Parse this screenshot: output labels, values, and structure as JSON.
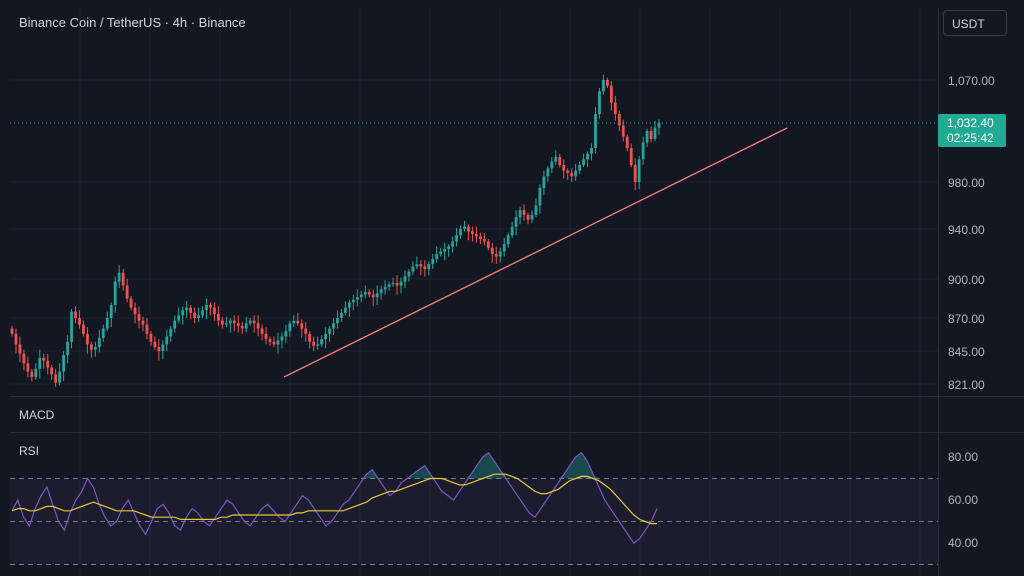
{
  "header": {
    "symbol_title": "Binance Coin / TetherUS · 4h · Binance"
  },
  "currency_button": {
    "label": "USDT"
  },
  "price_axis": {
    "ticks": [
      "1,070.00",
      "980.00",
      "940.00",
      "900.00",
      "870.00",
      "845.00",
      "821.00"
    ]
  },
  "last_price": {
    "value": "1,032.40",
    "countdown": "02:25:42",
    "color": "#22ab94"
  },
  "colors": {
    "background": "#131722",
    "up_candle": "#26a69a",
    "down_candle": "#ef5350",
    "trendline": "#f77c80",
    "rsi_line": "#7e57c2",
    "rsi_ma_line": "#e8c93a"
  },
  "panes": {
    "macd_label": "MACD",
    "rsi_label": "RSI"
  },
  "rsi_axis": {
    "ticks": [
      "80.00",
      "60.00",
      "40.00"
    ]
  },
  "chart_data": [
    {
      "type": "candlestick",
      "title": "Binance Coin / TetherUS · 4h · Binance",
      "ylim": [
        810,
        1090
      ],
      "last_price": 1032.4,
      "closes": [
        858,
        850,
        843,
        836,
        830,
        826,
        832,
        840,
        838,
        833,
        828,
        822,
        830,
        842,
        852,
        875,
        870,
        865,
        858,
        850,
        846,
        848,
        855,
        862,
        870,
        880,
        898,
        905,
        895,
        885,
        878,
        873,
        868,
        865,
        858,
        852,
        848,
        845,
        850,
        856,
        862,
        868,
        872,
        876,
        878,
        874,
        870,
        872,
        876,
        880,
        878,
        873,
        868,
        865,
        866,
        868,
        866,
        864,
        862,
        866,
        868,
        866,
        862,
        858,
        854,
        852,
        850,
        853,
        856,
        860,
        866,
        868,
        866,
        862,
        858,
        852,
        849,
        850,
        854,
        858,
        862,
        866,
        870,
        874,
        878,
        882,
        884,
        886,
        888,
        890,
        888,
        886,
        889,
        892,
        894,
        896,
        897,
        895,
        898,
        902,
        906,
        910,
        912,
        910,
        908,
        912,
        916,
        920,
        922,
        924,
        926,
        930,
        935,
        940,
        942,
        938,
        936,
        934,
        932,
        930,
        925,
        920,
        918,
        922,
        928,
        935,
        942,
        950,
        956,
        952,
        948,
        952,
        960,
        975,
        985,
        992,
        998,
        1002,
        995,
        990,
        988,
        985,
        990,
        995,
        1000,
        1005,
        1010,
        1040,
        1060,
        1070,
        1065,
        1050,
        1040,
        1030,
        1020,
        1010,
        995,
        980,
        1000,
        1015,
        1025,
        1018,
        1028,
        1032.4
      ],
      "trendline": {
        "from": {
          "bar": 65,
          "price": 828
        },
        "to": {
          "bar": 175,
          "price": 1035
        }
      }
    },
    {
      "type": "line",
      "title": "RSI",
      "ylim": [
        30,
        85
      ],
      "levels": [
        70,
        50,
        30
      ],
      "series": [
        {
          "name": "RSI",
          "values": [
            55,
            60,
            52,
            48,
            56,
            62,
            66,
            58,
            50,
            46,
            54,
            60,
            64,
            70,
            66,
            58,
            52,
            48,
            50,
            56,
            60,
            54,
            48,
            44,
            50,
            56,
            58,
            54,
            48,
            46,
            52,
            56,
            54,
            50,
            48,
            52,
            56,
            60,
            58,
            54,
            50,
            48,
            52,
            56,
            58,
            55,
            52,
            50,
            54,
            58,
            62,
            60,
            56,
            52,
            48,
            50,
            54,
            58,
            60,
            64,
            68,
            72,
            74,
            70,
            66,
            62,
            64,
            68,
            70,
            72,
            74,
            76,
            72,
            68,
            64,
            62,
            60,
            64,
            68,
            72,
            76,
            80,
            82,
            78,
            74,
            70,
            66,
            62,
            58,
            54,
            52,
            56,
            60,
            64,
            68,
            72,
            76,
            80,
            82,
            78,
            72,
            66,
            60,
            56,
            52,
            48,
            44,
            40,
            42,
            46,
            50,
            56
          ]
        },
        {
          "name": "RSI-based MA",
          "values": [
            55,
            56,
            56,
            55,
            55,
            56,
            57,
            57,
            56,
            55,
            55,
            56,
            57,
            58,
            59,
            58,
            57,
            56,
            55,
            55,
            55,
            55,
            54,
            53,
            52,
            52,
            52,
            52,
            52,
            51,
            51,
            51,
            51,
            51,
            51,
            51,
            52,
            52,
            53,
            53,
            53,
            53,
            53,
            53,
            53,
            53,
            53,
            53,
            53,
            54,
            54,
            55,
            55,
            55,
            55,
            55,
            55,
            55,
            56,
            57,
            58,
            59,
            61,
            62,
            63,
            64,
            64,
            65,
            66,
            67,
            68,
            69,
            70,
            70,
            70,
            69,
            68,
            67,
            67,
            68,
            69,
            70,
            71,
            72,
            72,
            72,
            71,
            70,
            68,
            66,
            64,
            63,
            63,
            64,
            65,
            67,
            69,
            70,
            71,
            71,
            70,
            69,
            67,
            65,
            62,
            59,
            56,
            53,
            51,
            50,
            49,
            49
          ]
        }
      ]
    }
  ]
}
